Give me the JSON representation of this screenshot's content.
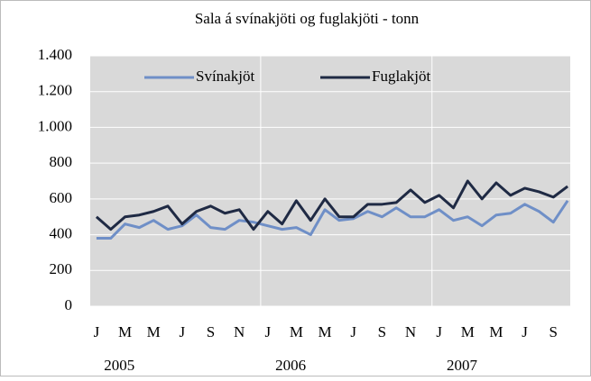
{
  "chart_data": {
    "type": "line",
    "title": "Sala á svínakjöti og fuglakjöti - tonn",
    "categories": [
      "J",
      null,
      "M",
      null,
      "M",
      null,
      "J",
      null,
      "S",
      null,
      "N",
      null,
      "J",
      null,
      "M",
      null,
      "M",
      null,
      "J",
      null,
      "S",
      null,
      "N",
      null,
      "J",
      null,
      "M",
      null,
      "M",
      null,
      "J",
      null,
      "S",
      null
    ],
    "years": [
      "2005",
      "2006",
      "2007"
    ],
    "series": [
      {
        "name": "Svínakjöt",
        "color": "#6f8fc7",
        "values": [
          380,
          380,
          460,
          440,
          480,
          430,
          450,
          510,
          440,
          430,
          480,
          470,
          450,
          430,
          440,
          400,
          540,
          480,
          490,
          530,
          500,
          550,
          500,
          500,
          540,
          480,
          500,
          450,
          510,
          520,
          570,
          530,
          470,
          590
        ]
      },
      {
        "name": "Fuglakjöt",
        "color": "#1f2a44",
        "values": [
          500,
          430,
          500,
          510,
          530,
          560,
          460,
          530,
          560,
          520,
          540,
          430,
          530,
          460,
          590,
          480,
          600,
          500,
          500,
          570,
          570,
          580,
          650,
          580,
          620,
          550,
          700,
          600,
          690,
          620,
          660,
          640,
          610,
          670
        ]
      }
    ],
    "ylim": [
      0,
      1400
    ],
    "yticks": [
      0,
      200,
      400,
      600,
      800,
      {
        "value": 1000,
        "label": "1.000"
      },
      {
        "value": 1200,
        "label": "1.200"
      },
      {
        "value": 1400,
        "label": "1.400"
      }
    ],
    "grid": true
  }
}
